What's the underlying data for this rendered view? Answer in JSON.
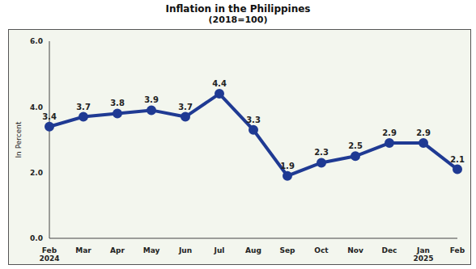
{
  "chart_data": {
    "type": "line",
    "title": "Inflation in the Philippines",
    "subtitle": "(2018=100)",
    "y_label": "In Percent",
    "categories": [
      "Feb 2024",
      "Mar",
      "Apr",
      "May",
      "Jun",
      "Jul",
      "Aug",
      "Sep",
      "Oct",
      "Nov",
      "Dec",
      "Jan 2025",
      "Feb"
    ],
    "values": [
      3.4,
      3.7,
      3.8,
      3.9,
      3.7,
      4.4,
      3.3,
      1.9,
      2.3,
      2.5,
      2.9,
      2.9,
      2.1
    ],
    "color": "#1f3a93",
    "marker": "circle",
    "line_style": "solid",
    "ylim": [
      0,
      6
    ],
    "yticks": [
      {
        "value": 0,
        "label": "0.0"
      },
      {
        "value": 2,
        "label": "2.0"
      },
      {
        "value": 4,
        "label": "4.0"
      },
      {
        "value": 6,
        "label": "6.0"
      }
    ],
    "grid": false,
    "data_labels": true
  }
}
